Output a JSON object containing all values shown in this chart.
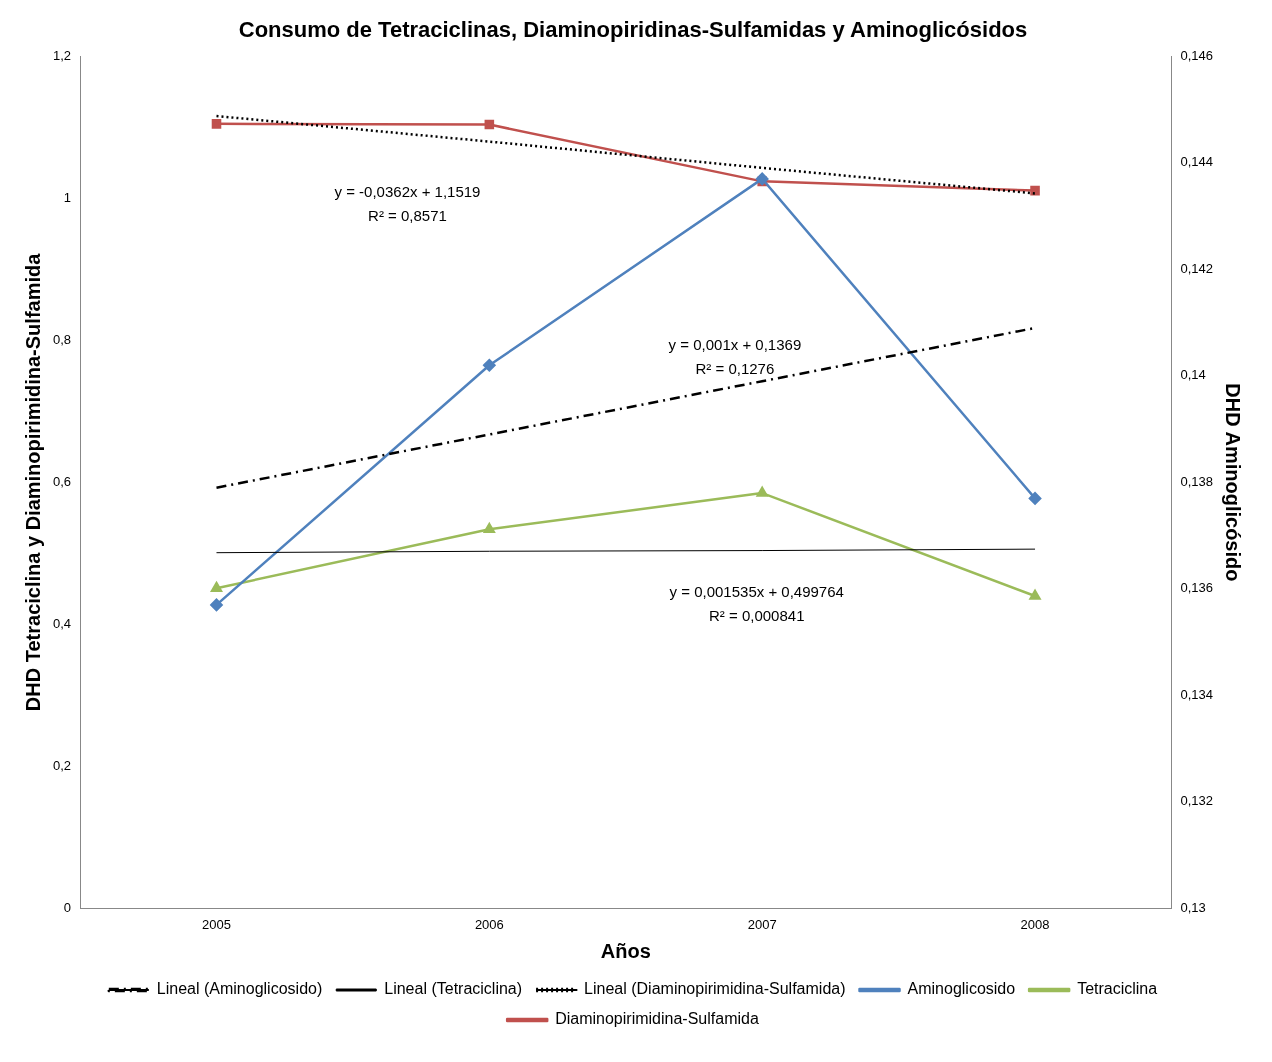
{
  "chart_data": {
    "type": "line",
    "title": "Consumo de Tetraciclinas, Diaminopiridinas-Sulfamidas y Aminoglicósidos",
    "xlabel": "Años",
    "ylabel": "DHD Tetraciclina y Diaminopirimidina-Sulfamida",
    "y2label": "DHD Aminoglicósido",
    "categories": [
      "2005",
      "2006",
      "2007",
      "2008"
    ],
    "series": [
      {
        "name": "Diaminopirimidina-Sulfamida",
        "color": "#c0504d",
        "marker": "square",
        "values": [
          1.105,
          1.104,
          1.024,
          1.011
        ]
      },
      {
        "name": "Tetraciclina",
        "color": "#9bbb59",
        "marker": "triangle",
        "values": [
          0.451,
          0.534,
          0.585,
          0.44
        ]
      },
      {
        "name": "Aminoglicosido",
        "color": "#4f81bd",
        "marker": "diamond",
        "axis": "y2",
        "values": [
          0.1357,
          0.1402,
          0.1437,
          0.1377
        ]
      },
      {
        "name": "Lineal (Diaminopirimidina-Sulfamida)",
        "color": "#000000",
        "marker": "none",
        "line_style": "dotted",
        "values": [
          1.116,
          1.08,
          1.043,
          1.007
        ]
      },
      {
        "name": "Lineal (Tetraciclina)",
        "color": "#000000",
        "marker": "none",
        "values": [
          0.501,
          0.503,
          0.504,
          0.506
        ]
      },
      {
        "name": "Lineal (Aminoglicosido)",
        "color": "#000000",
        "marker": "none",
        "line_style": "dashed",
        "axis": "y2",
        "values": [
          0.1379,
          0.1389,
          0.1399,
          0.1409
        ]
      }
    ],
    "ylim": [
      0,
      1.2
    ],
    "yticks": [
      0,
      {
        "value": 0.2,
        "label": "0,2"
      },
      {
        "value": 0.4,
        "label": "0,4"
      },
      {
        "value": 0.6,
        "label": "0,6"
      },
      {
        "value": 0.8,
        "label": "0,8"
      },
      1,
      {
        "value": 1.2,
        "label": "1,2"
      }
    ],
    "y2lim": [
      0.13,
      0.146
    ],
    "y2ticks": [
      {
        "value": 0.13,
        "label": "0,13"
      },
      {
        "value": 0.132,
        "label": "0,132"
      },
      {
        "value": 0.134,
        "label": "0,134"
      },
      {
        "value": 0.136,
        "label": "0,136"
      },
      {
        "value": 0.138,
        "label": "0,138"
      },
      {
        "value": 0.14,
        "label": "0,14"
      },
      {
        "value": 0.142,
        "label": "0,142"
      },
      {
        "value": 0.144,
        "label": "0,144"
      },
      {
        "value": 0.146,
        "label": "0,146"
      }
    ],
    "annotations": [
      "y = -0,0362x + 1,1519",
      "R² = 0,8571",
      "y = 0,001x + 0,1369",
      "R² = 0,1276",
      "y = 0,001535x + 0,499764",
      "R² = 0,000841"
    ],
    "grid": false,
    "legend": "bottom"
  }
}
